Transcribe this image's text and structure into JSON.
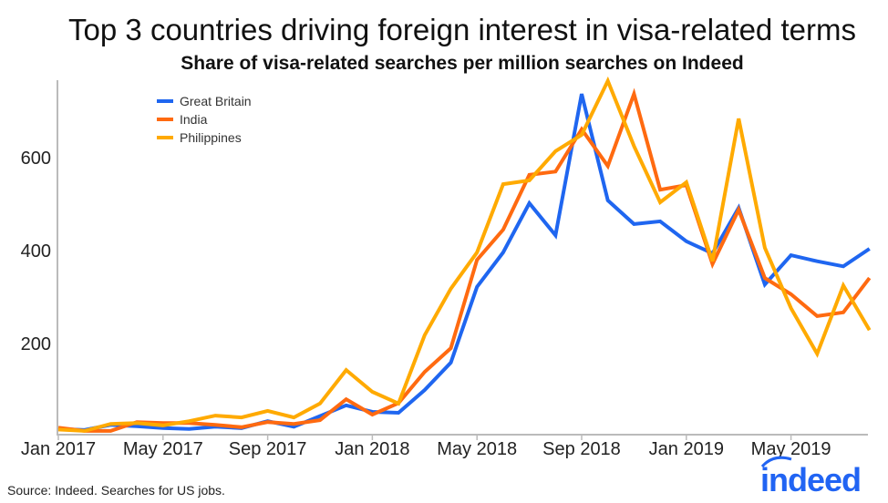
{
  "chart_data": {
    "type": "line",
    "title": "Top 3 countries driving foreign interest in visa-related terms",
    "subtitle": "Share of visa-related searches per million searches on Indeed",
    "xlabel": "",
    "ylabel": "",
    "x": [
      "Jan 2017",
      "Feb 2017",
      "Mar 2017",
      "Apr 2017",
      "May 2017",
      "Jun 2017",
      "Jul 2017",
      "Aug 2017",
      "Sep 2017",
      "Oct 2017",
      "Nov 2017",
      "Dec 2017",
      "Jan 2018",
      "Feb 2018",
      "Mar 2018",
      "Apr 2018",
      "May 2018",
      "Jun 2018",
      "Jul 2018",
      "Aug 2018",
      "Sep 2018",
      "Oct 2018",
      "Nov 2018",
      "Dec 2018",
      "Jan 2019",
      "Feb 2019",
      "Mar 2019",
      "Apr 2019",
      "May 2019",
      "Jun 2019",
      "Jul 2019",
      "Aug 2019"
    ],
    "x_tick_labels": [
      "Jan 2017",
      "May 2017",
      "Sep 2017",
      "Jan 2018",
      "May 2018",
      "Sep 2018",
      "Jan 2019",
      "May 2019"
    ],
    "y_ticks": [
      200,
      400,
      600
    ],
    "ylim": [
      0,
      760
    ],
    "grid": false,
    "legend_position": "top-left",
    "series": [
      {
        "name": "Great Britain",
        "color": "#1f66f0",
        "values": [
          16,
          14,
          25,
          22,
          18,
          16,
          21,
          18,
          33,
          21,
          44,
          67,
          53,
          51,
          100,
          159,
          322,
          396,
          502,
          433,
          737,
          508,
          457,
          463,
          420,
          394,
          492,
          327,
          390,
          377,
          366,
          404
        ]
      },
      {
        "name": "India",
        "color": "#ff6a10",
        "values": [
          19,
          12,
          12,
          31,
          29,
          29,
          25,
          20,
          31,
          27,
          35,
          80,
          47,
          72,
          139,
          190,
          380,
          445,
          563,
          570,
          661,
          582,
          737,
          531,
          541,
          371,
          488,
          341,
          306,
          259,
          267,
          341
        ]
      },
      {
        "name": "Philippines",
        "color": "#ffaa00",
        "values": [
          15,
          12,
          27,
          29,
          24,
          33,
          45,
          41,
          55,
          41,
          71,
          143,
          96,
          71,
          218,
          318,
          396,
          543,
          551,
          614,
          649,
          765,
          625,
          504,
          547,
          377,
          684,
          406,
          276,
          178,
          325,
          229
        ]
      }
    ]
  },
  "footer": {
    "source": "Source: Indeed. Searches for US jobs.",
    "logo": "indeed"
  }
}
